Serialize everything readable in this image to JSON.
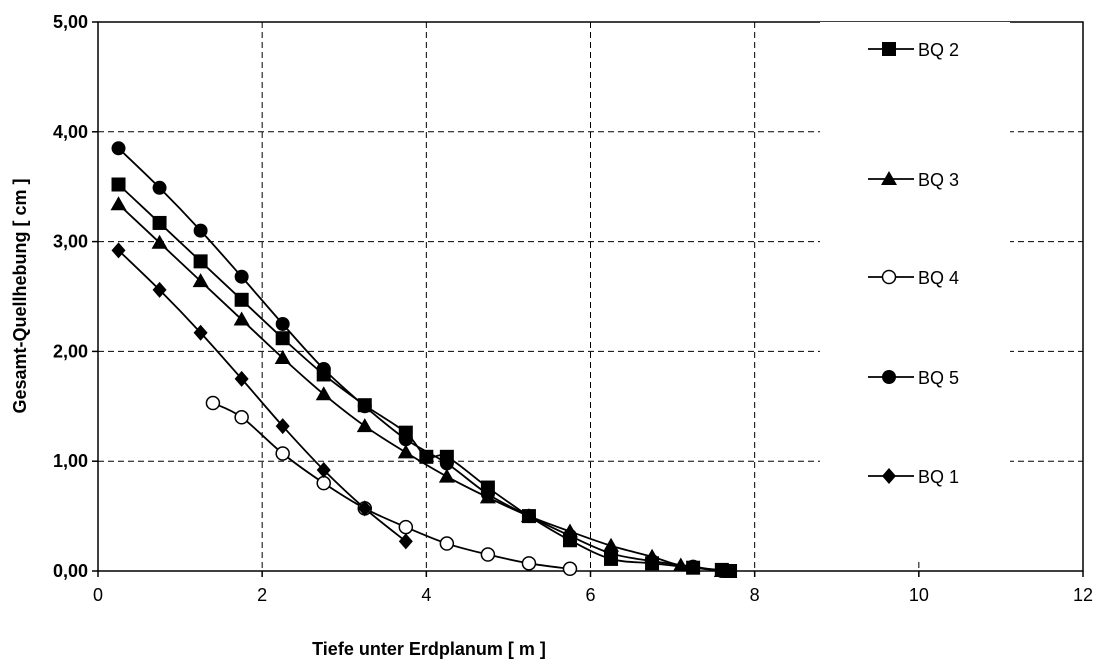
{
  "chart_data": {
    "type": "line",
    "title": "",
    "xlabel": "Tiefe unter Erdplanum [ m ]",
    "ylabel": "Gesamt-Quellhebung [ cm ]",
    "xlim": [
      0,
      12
    ],
    "ylim": [
      0,
      5
    ],
    "x_ticks": [
      "0",
      "2",
      "4",
      "6",
      "8",
      "10",
      "12"
    ],
    "y_ticks": [
      "0,00",
      "1,00",
      "2,00",
      "3,00",
      "4,00",
      "5,00"
    ],
    "grid": true,
    "legend_position": "right",
    "series": [
      {
        "name": "BQ 2",
        "marker": "square",
        "points": [
          [
            0.25,
            3.52
          ],
          [
            0.75,
            3.17
          ],
          [
            1.25,
            2.82
          ],
          [
            1.75,
            2.47
          ],
          [
            2.25,
            2.12
          ],
          [
            2.75,
            1.79
          ],
          [
            3.25,
            1.51
          ],
          [
            3.75,
            1.26
          ],
          [
            4.0,
            1.04
          ],
          [
            4.25,
            1.04
          ],
          [
            4.75,
            0.76
          ],
          [
            5.25,
            0.5
          ],
          [
            5.75,
            0.28
          ],
          [
            6.25,
            0.11
          ],
          [
            6.75,
            0.07
          ],
          [
            7.25,
            0.03
          ],
          [
            7.6,
            0.01
          ],
          [
            7.7,
            0.0
          ]
        ]
      },
      {
        "name": "BQ 3",
        "marker": "triangle",
        "points": [
          [
            0.25,
            3.34
          ],
          [
            0.75,
            2.99
          ],
          [
            1.25,
            2.64
          ],
          [
            1.75,
            2.29
          ],
          [
            2.25,
            1.94
          ],
          [
            2.75,
            1.61
          ],
          [
            3.25,
            1.32
          ],
          [
            3.75,
            1.08
          ],
          [
            4.25,
            0.86
          ],
          [
            4.75,
            0.67
          ],
          [
            5.25,
            0.5
          ],
          [
            5.75,
            0.36
          ],
          [
            6.25,
            0.23
          ],
          [
            6.75,
            0.13
          ],
          [
            7.1,
            0.05
          ],
          [
            7.6,
            0.0
          ]
        ]
      },
      {
        "name": "BQ 4",
        "marker": "circle-open",
        "points": [
          [
            1.4,
            1.53
          ],
          [
            1.75,
            1.4
          ],
          [
            2.25,
            1.07
          ],
          [
            2.75,
            0.8
          ],
          [
            3.25,
            0.57
          ],
          [
            3.75,
            0.4
          ],
          [
            4.25,
            0.25
          ],
          [
            4.75,
            0.15
          ],
          [
            5.25,
            0.07
          ],
          [
            5.75,
            0.02
          ]
        ]
      },
      {
        "name": "BQ 5",
        "marker": "circle",
        "points": [
          [
            0.25,
            3.85
          ],
          [
            0.75,
            3.49
          ],
          [
            1.25,
            3.1
          ],
          [
            1.75,
            2.68
          ],
          [
            2.25,
            2.25
          ],
          [
            2.75,
            1.84
          ],
          [
            3.25,
            1.5
          ],
          [
            3.75,
            1.2
          ],
          [
            4.25,
            0.98
          ],
          [
            4.75,
            0.7
          ],
          [
            5.25,
            0.5
          ],
          [
            5.75,
            0.32
          ],
          [
            6.25,
            0.16
          ],
          [
            6.75,
            0.09
          ],
          [
            7.25,
            0.04
          ],
          [
            7.6,
            0.0
          ]
        ]
      },
      {
        "name": "BQ 1",
        "marker": "diamond",
        "points": [
          [
            0.25,
            2.92
          ],
          [
            0.75,
            2.56
          ],
          [
            1.25,
            2.17
          ],
          [
            1.75,
            1.75
          ],
          [
            2.25,
            1.32
          ],
          [
            2.75,
            0.92
          ],
          [
            3.25,
            0.57
          ],
          [
            3.75,
            0.27
          ]
        ]
      }
    ]
  }
}
